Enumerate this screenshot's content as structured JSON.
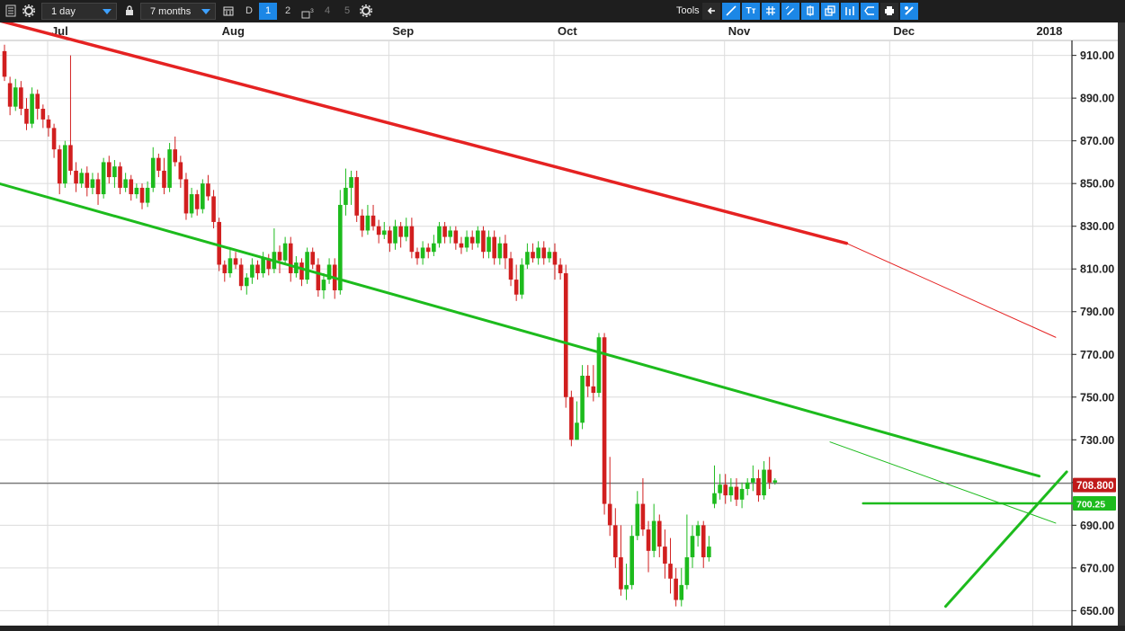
{
  "toolbar": {
    "interval": "1 day",
    "range": "7 months",
    "type_btn": "D",
    "layouts": [
      "1",
      "2",
      "3",
      "4",
      "5"
    ],
    "tools_label": "Tools"
  },
  "chart_data": {
    "type": "candlestick",
    "ylim": [
      643,
      917
    ],
    "yticks": [
      650,
      670,
      690,
      710,
      730,
      750,
      770,
      790,
      810,
      830,
      850,
      870,
      890,
      910
    ],
    "ytick_labels": [
      "650.00",
      "670.00",
      "690.00",
      "",
      "730.00",
      "750.00",
      "770.00",
      "790.00",
      "810.00",
      "830.00",
      "850.00",
      "870.00",
      "890.00",
      "910.00"
    ],
    "months": [
      {
        "label": "Jul",
        "day": 8
      },
      {
        "label": "Aug",
        "day": 39
      },
      {
        "label": "Sep",
        "day": 70
      },
      {
        "label": "Oct",
        "day": 100
      },
      {
        "label": "Nov",
        "day": 131
      },
      {
        "label": "Dec",
        "day": 161
      },
      {
        "label": "2018",
        "day": 187
      }
    ],
    "candles": [
      [
        912,
        900,
        915,
        898
      ],
      [
        897,
        886,
        900,
        882
      ],
      [
        886,
        895,
        899,
        884
      ],
      [
        895,
        885,
        898,
        882
      ],
      [
        885,
        878,
        890,
        875
      ],
      [
        878,
        892,
        895,
        876
      ],
      [
        892,
        885,
        894,
        880
      ],
      [
        885,
        880,
        887,
        876
      ],
      [
        880,
        876,
        882,
        872
      ],
      [
        876,
        866,
        878,
        862
      ],
      [
        866,
        850,
        868,
        845
      ],
      [
        850,
        868,
        870,
        848
      ],
      [
        868,
        856,
        910,
        854
      ],
      [
        856,
        850,
        860,
        846
      ],
      [
        850,
        855,
        857,
        848
      ],
      [
        855,
        848,
        858,
        844
      ],
      [
        848,
        852,
        855,
        845
      ],
      [
        852,
        845,
        855,
        840
      ],
      [
        845,
        860,
        862,
        843
      ],
      [
        860,
        853,
        863,
        850
      ],
      [
        853,
        858,
        861,
        848
      ],
      [
        858,
        848,
        860,
        845
      ],
      [
        848,
        852,
        855,
        846
      ],
      [
        852,
        845,
        854,
        842
      ],
      [
        845,
        848,
        850,
        843
      ],
      [
        848,
        841,
        850,
        838
      ],
      [
        841,
        848,
        851,
        839
      ],
      [
        848,
        862,
        867,
        846
      ],
      [
        862,
        856,
        864,
        853
      ],
      [
        856,
        848,
        862,
        845
      ],
      [
        848,
        866,
        869,
        846
      ],
      [
        866,
        860,
        872,
        858
      ],
      [
        860,
        852,
        863,
        848
      ],
      [
        852,
        836,
        855,
        833
      ],
      [
        836,
        845,
        848,
        834
      ],
      [
        845,
        838,
        847,
        835
      ],
      [
        838,
        850,
        852,
        836
      ],
      [
        850,
        844,
        854,
        842
      ],
      [
        844,
        832,
        847,
        829
      ],
      [
        832,
        812,
        834,
        809
      ],
      [
        812,
        808,
        814,
        804
      ],
      [
        808,
        815,
        819,
        806
      ],
      [
        815,
        812,
        818,
        810
      ],
      [
        812,
        802,
        815,
        800
      ],
      [
        802,
        806,
        808,
        798
      ],
      [
        806,
        812,
        815,
        803
      ],
      [
        812,
        808,
        814,
        805
      ],
      [
        808,
        815,
        818,
        806
      ],
      [
        815,
        810,
        817,
        807
      ],
      [
        810,
        818,
        829,
        808
      ],
      [
        818,
        814,
        821,
        808
      ],
      [
        814,
        822,
        825,
        812
      ],
      [
        822,
        808,
        825,
        804
      ],
      [
        808,
        813,
        816,
        806
      ],
      [
        813,
        805,
        815,
        802
      ],
      [
        805,
        818,
        820,
        803
      ],
      [
        818,
        812,
        820,
        810
      ],
      [
        812,
        800,
        815,
        797
      ],
      [
        800,
        805,
        808,
        796
      ],
      [
        805,
        812,
        815,
        803
      ],
      [
        812,
        800,
        815,
        796
      ],
      [
        800,
        840,
        847,
        798
      ],
      [
        840,
        848,
        857,
        835
      ],
      [
        848,
        853,
        856,
        840
      ],
      [
        853,
        835,
        856,
        832
      ],
      [
        835,
        828,
        838,
        825
      ],
      [
        828,
        835,
        840,
        826
      ],
      [
        835,
        830,
        840,
        828
      ],
      [
        830,
        826,
        833,
        822
      ],
      [
        826,
        828,
        832,
        824
      ],
      [
        828,
        822,
        830,
        818
      ],
      [
        822,
        830,
        833,
        819
      ],
      [
        830,
        825,
        832,
        820
      ],
      [
        825,
        830,
        834,
        823
      ],
      [
        830,
        818,
        834,
        815
      ],
      [
        818,
        815,
        820,
        812
      ],
      [
        815,
        820,
        823,
        812
      ],
      [
        820,
        818,
        822,
        815
      ],
      [
        818,
        822,
        826,
        816
      ],
      [
        822,
        830,
        832,
        820
      ],
      [
        830,
        825,
        832,
        822
      ],
      [
        825,
        828,
        830,
        822
      ],
      [
        828,
        822,
        830,
        819
      ],
      [
        822,
        820,
        825,
        817
      ],
      [
        820,
        825,
        828,
        818
      ],
      [
        825,
        822,
        828,
        819
      ],
      [
        822,
        828,
        830,
        820
      ],
      [
        828,
        818,
        830,
        815
      ],
      [
        818,
        825,
        828,
        815
      ],
      [
        825,
        815,
        828,
        812
      ],
      [
        815,
        822,
        825,
        812
      ],
      [
        822,
        815,
        826,
        810
      ],
      [
        815,
        805,
        818,
        802
      ],
      [
        805,
        798,
        812,
        795
      ],
      [
        798,
        812,
        815,
        796
      ],
      [
        812,
        818,
        822,
        810
      ],
      [
        818,
        815,
        822,
        813
      ],
      [
        815,
        820,
        823,
        812
      ],
      [
        820,
        815,
        823,
        812
      ],
      [
        815,
        818,
        820,
        813
      ],
      [
        818,
        812,
        822,
        805
      ],
      [
        812,
        808,
        815,
        805
      ],
      [
        808,
        750,
        812,
        745
      ],
      [
        750,
        730,
        753,
        727
      ],
      [
        730,
        738,
        748,
        730
      ],
      [
        738,
        760,
        765,
        735
      ],
      [
        760,
        755,
        765,
        750
      ],
      [
        755,
        752,
        765,
        748
      ],
      [
        752,
        778,
        780,
        750
      ],
      [
        778,
        700,
        780,
        695
      ],
      [
        700,
        690,
        722,
        685
      ],
      [
        690,
        675,
        698,
        670
      ],
      [
        675,
        660,
        690,
        657
      ],
      [
        660,
        662,
        672,
        655
      ],
      [
        662,
        685,
        690,
        660
      ],
      [
        685,
        700,
        706,
        683
      ],
      [
        700,
        688,
        712,
        685
      ],
      [
        688,
        678,
        692,
        668
      ],
      [
        678,
        692,
        700,
        675
      ],
      [
        692,
        680,
        695,
        675
      ],
      [
        680,
        672,
        688,
        665
      ],
      [
        672,
        665,
        684,
        658
      ],
      [
        665,
        655,
        670,
        652
      ],
      [
        655,
        662,
        670,
        652
      ],
      [
        662,
        675,
        695,
        660
      ],
      [
        675,
        685,
        690,
        670
      ],
      [
        685,
        690,
        692,
        680
      ],
      [
        690,
        675,
        692,
        670
      ],
      [
        675,
        680,
        685,
        673
      ],
      [
        700,
        705,
        718,
        698
      ],
      [
        705,
        709,
        714,
        702
      ],
      [
        709,
        704,
        714,
        700
      ],
      [
        704,
        708,
        712,
        701
      ],
      [
        708,
        702,
        712,
        699
      ],
      [
        702,
        707,
        710,
        698
      ],
      [
        707,
        710,
        712,
        704
      ],
      [
        710,
        712,
        718,
        706
      ],
      [
        712,
        704,
        716,
        701
      ],
      [
        704,
        716,
        720,
        702
      ],
      [
        716,
        710,
        722,
        707
      ],
      [
        710,
        711,
        712,
        709
      ]
    ],
    "lines": [
      {
        "name": "resistance",
        "color": "#e52222",
        "width": 3.5,
        "from": [
          -2,
          927
        ],
        "to": [
          153,
          822
        ]
      },
      {
        "name": "resistance-ext",
        "color": "#e52222",
        "width": 1,
        "from": [
          153,
          822
        ],
        "to": [
          191,
          778
        ]
      },
      {
        "name": "support-channel",
        "color": "#1dbb1d",
        "width": 3,
        "from": [
          -1,
          850
        ],
        "to": [
          188,
          713
        ]
      },
      {
        "name": "support-channel-ext",
        "color": "#1dbb1d",
        "width": 1,
        "from": [
          150,
          729
        ],
        "to": [
          191,
          691
        ]
      },
      {
        "name": "breakout-level",
        "color": "#1dbb1d",
        "width": 2.5,
        "from": [
          156,
          700.25
        ],
        "to": [
          198,
          700.25
        ]
      },
      {
        "name": "uptrend",
        "color": "#1dbb1d",
        "width": 3,
        "from": [
          171,
          652
        ],
        "to": [
          193,
          715
        ]
      }
    ],
    "price_labels": [
      {
        "name": "last-price",
        "text": "708.800",
        "value": 708.8,
        "color": "#c01a1a"
      },
      {
        "name": "level-price",
        "text": "700.25",
        "value": 700.25,
        "color": "#1dbb1d"
      }
    ],
    "crosshair_value": 709.6,
    "colors": {
      "up": "#1dbb1d",
      "down": "#d11f1f",
      "grid": "#dcdcdc",
      "axis": "#222222"
    }
  }
}
